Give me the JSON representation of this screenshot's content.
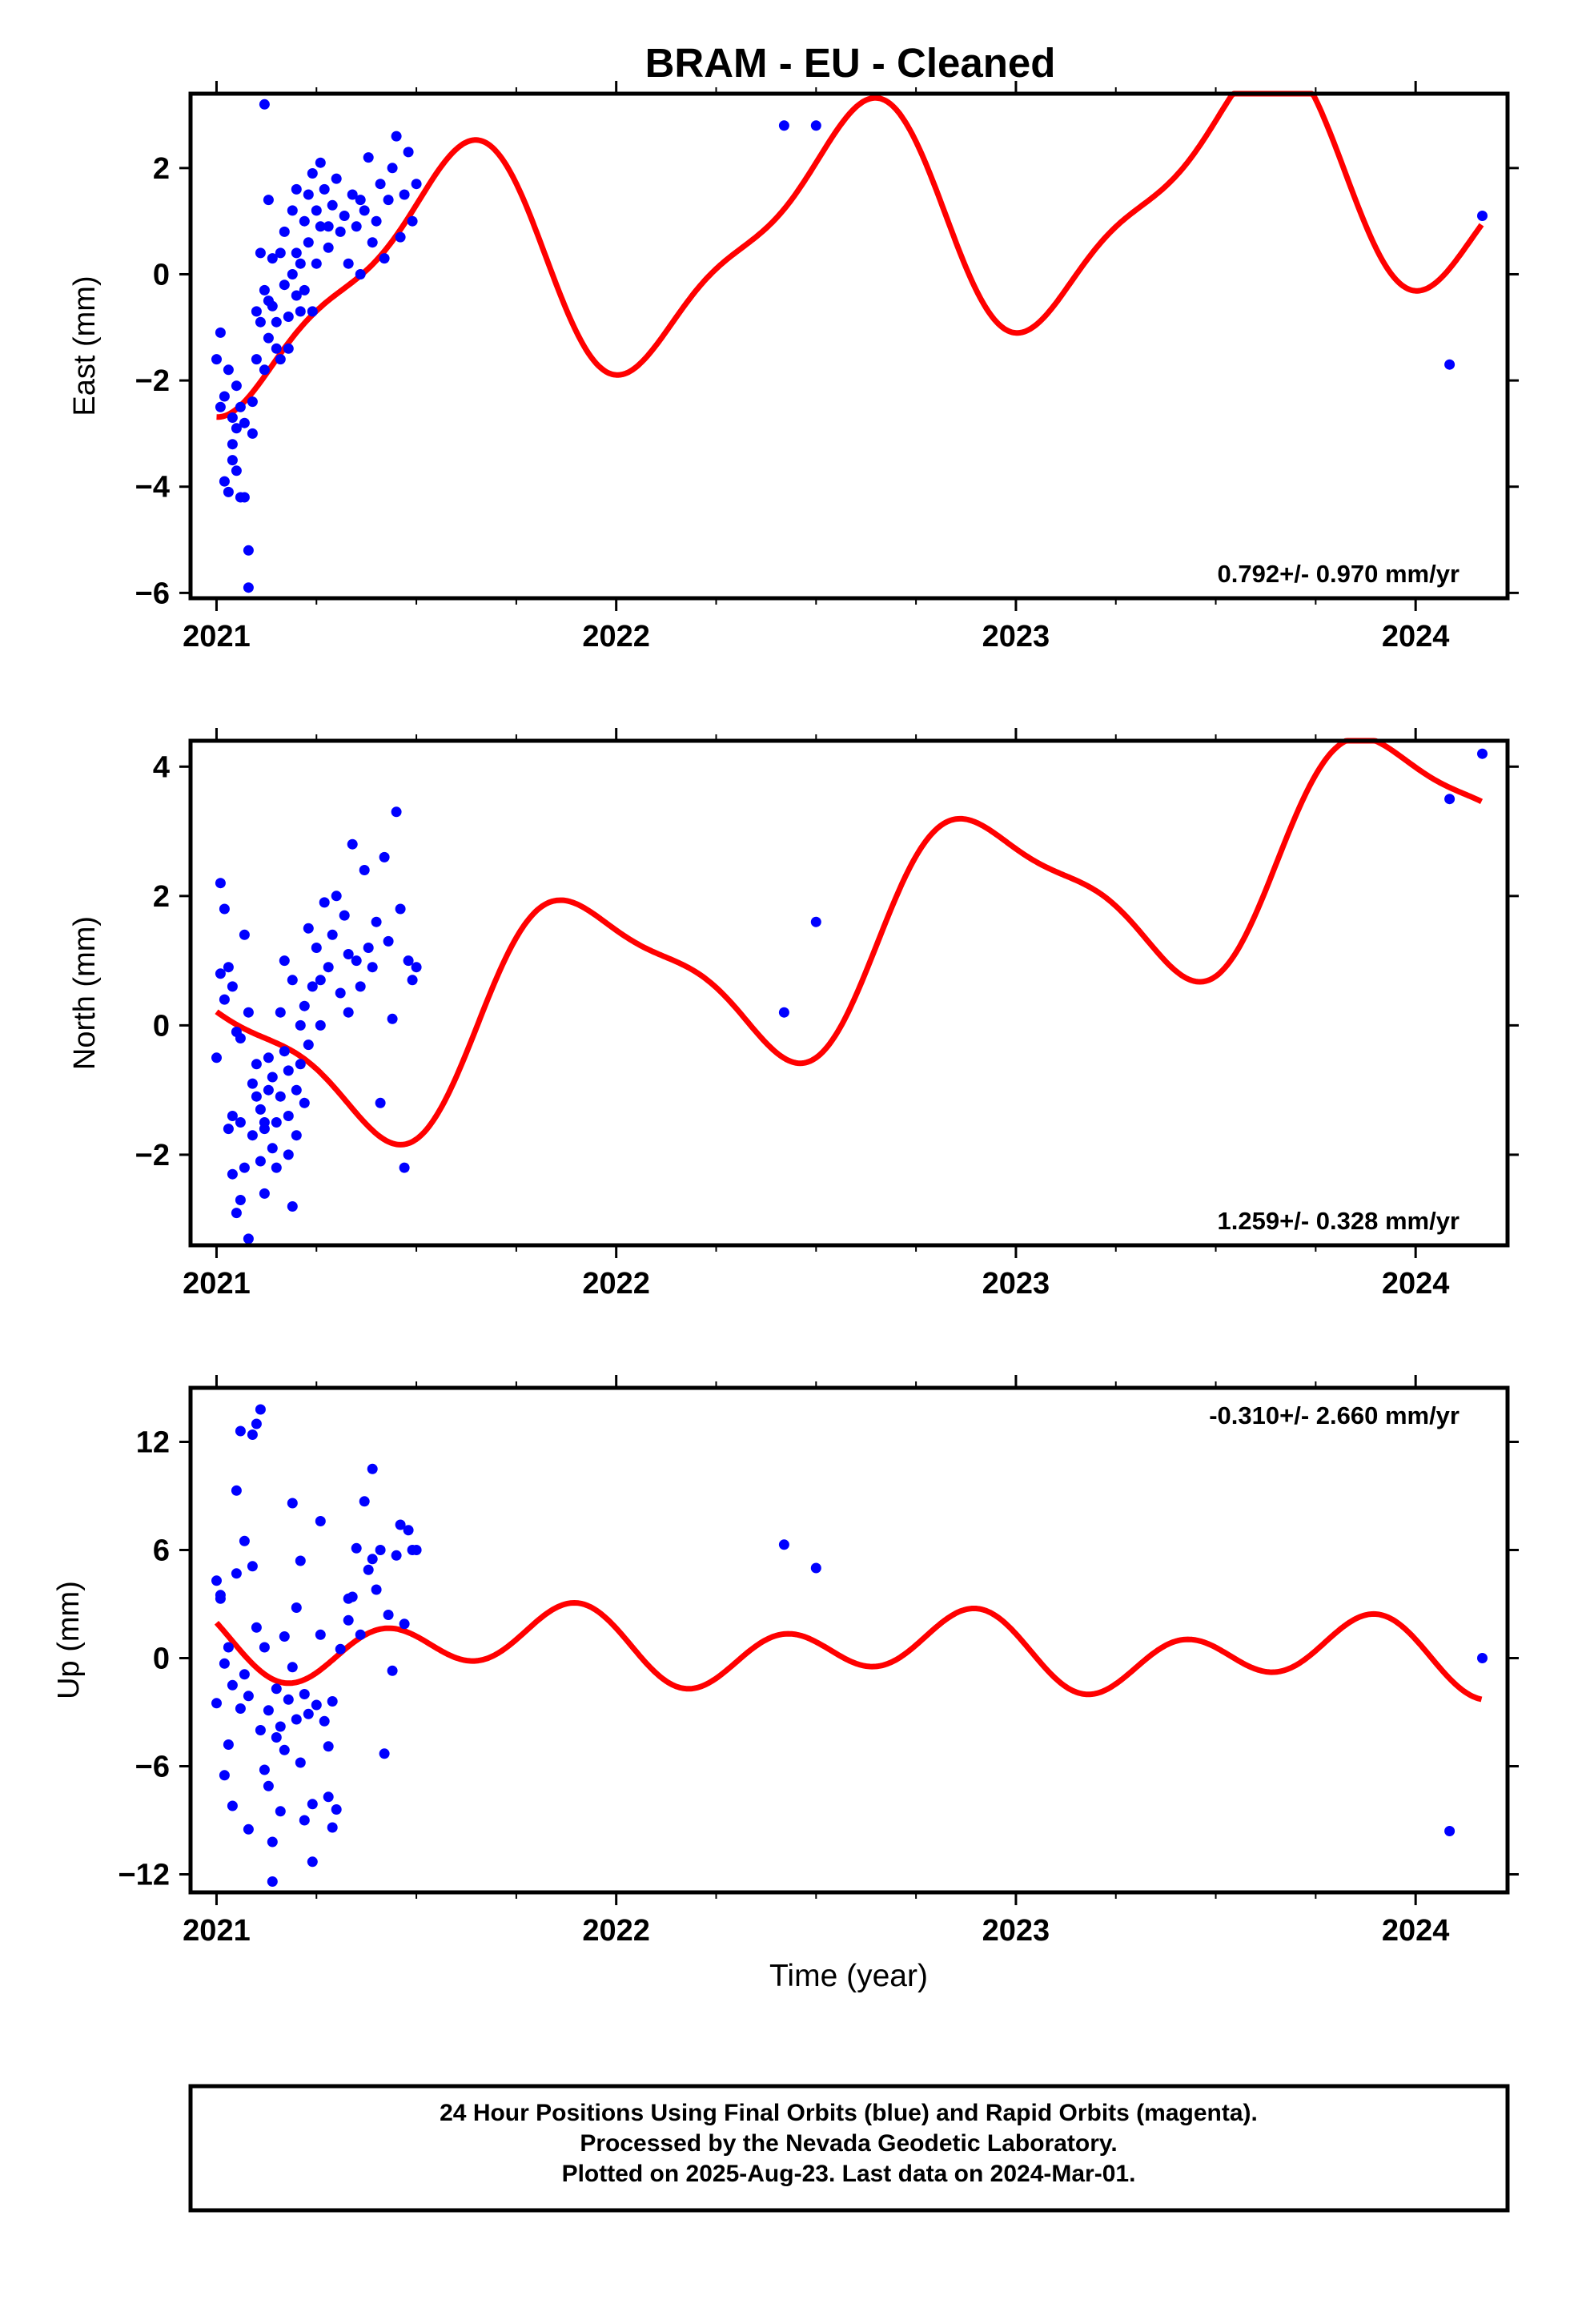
{
  "title": "BRAM  - EU - Cleaned",
  "xlabel": "Time (year)",
  "colors": {
    "final_orbits": "#0000ff",
    "model": "#ff0000",
    "frame": "#000000"
  },
  "footer": {
    "line1": "24 Hour Positions Using Final Orbits (blue) and Rapid Orbits (magenta).",
    "line2": "Processed by the Nevada Geodetic Laboratory.",
    "line3": "Plotted on 2025-Aug-23. Last data on 2024-Mar-01."
  },
  "chart_data": [
    {
      "type": "scatter",
      "panel": "east",
      "ylabel": "East (mm)",
      "rate": "0.792+/- 0.970 mm/yr",
      "xlim": [
        2020.935,
        2024.23
      ],
      "ylim": [
        -6.1,
        3.4
      ],
      "xticks": [
        2021,
        2022,
        2023,
        2024
      ],
      "yticks": [
        -6,
        -4,
        -2,
        0,
        2
      ],
      "model": {
        "offset": 0.8,
        "trend": 0.792,
        "ann_cos": -1.8,
        "ann_sin": -1.0,
        "semi_cos": -0.5,
        "semi_sin": 0.4,
        "xrange": [
          2021.0,
          2024.167
        ]
      },
      "points": [
        [
          2021.0,
          -1.6
        ],
        [
          2021.01,
          -1.1
        ],
        [
          2021.01,
          -2.5
        ],
        [
          2021.02,
          -3.9
        ],
        [
          2021.02,
          -2.3
        ],
        [
          2021.03,
          -1.8
        ],
        [
          2021.03,
          -4.1
        ],
        [
          2021.04,
          -2.7
        ],
        [
          2021.04,
          -3.5
        ],
        [
          2021.05,
          -2.9
        ],
        [
          2021.05,
          -3.7
        ],
        [
          2021.06,
          -4.2
        ],
        [
          2021.06,
          -2.5
        ],
        [
          2021.07,
          -2.8
        ],
        [
          2021.07,
          -4.2
        ],
        [
          2021.08,
          -5.2
        ],
        [
          2021.08,
          -5.9
        ],
        [
          2021.09,
          -3.0
        ],
        [
          2021.09,
          -2.4
        ],
        [
          2021.1,
          -1.6
        ],
        [
          2021.1,
          -0.7
        ],
        [
          2021.11,
          0.4
        ],
        [
          2021.11,
          -0.9
        ],
        [
          2021.12,
          -1.8
        ],
        [
          2021.12,
          -0.3
        ],
        [
          2021.13,
          1.4
        ],
        [
          2021.13,
          -1.2
        ],
        [
          2021.14,
          0.3
        ],
        [
          2021.14,
          -0.6
        ],
        [
          2021.15,
          -1.4
        ],
        [
          2021.15,
          -0.9
        ],
        [
          2021.16,
          0.4
        ],
        [
          2021.16,
          -1.6
        ],
        [
          2021.17,
          -0.2
        ],
        [
          2021.17,
          0.8
        ],
        [
          2021.18,
          -1.4
        ],
        [
          2021.18,
          -0.8
        ],
        [
          2021.19,
          0.0
        ],
        [
          2021.19,
          1.2
        ],
        [
          2021.2,
          -0.4
        ],
        [
          2021.2,
          1.6
        ],
        [
          2021.21,
          -0.7
        ],
        [
          2021.21,
          0.2
        ],
        [
          2021.22,
          1.0
        ],
        [
          2021.22,
          -0.3
        ],
        [
          2021.23,
          1.5
        ],
        [
          2021.23,
          0.6
        ],
        [
          2021.24,
          1.9
        ],
        [
          2021.24,
          -0.7
        ],
        [
          2021.25,
          1.2
        ],
        [
          2021.25,
          0.2
        ],
        [
          2021.26,
          2.1
        ],
        [
          2021.26,
          0.9
        ],
        [
          2021.27,
          1.6
        ],
        [
          2021.28,
          0.5
        ],
        [
          2021.29,
          1.3
        ],
        [
          2021.3,
          1.8
        ],
        [
          2021.31,
          0.8
        ],
        [
          2021.32,
          1.1
        ],
        [
          2021.33,
          0.2
        ],
        [
          2021.34,
          1.5
        ],
        [
          2021.35,
          0.9
        ],
        [
          2021.36,
          0.0
        ],
        [
          2021.37,
          1.2
        ],
        [
          2021.38,
          2.2
        ],
        [
          2021.39,
          0.6
        ],
        [
          2021.4,
          1.0
        ],
        [
          2021.41,
          1.7
        ],
        [
          2021.42,
          0.3
        ],
        [
          2021.43,
          1.4
        ],
        [
          2021.44,
          2.0
        ],
        [
          2021.45,
          2.6
        ],
        [
          2021.46,
          0.7
        ],
        [
          2021.47,
          1.5
        ],
        [
          2021.48,
          2.3
        ],
        [
          2021.49,
          1.0
        ],
        [
          2021.5,
          1.7
        ],
        [
          2021.12,
          3.2
        ],
        [
          2021.04,
          -3.2
        ],
        [
          2021.05,
          -2.1
        ],
        [
          2021.13,
          -0.5
        ],
        [
          2021.2,
          0.4
        ],
        [
          2021.28,
          0.9
        ],
        [
          2021.36,
          1.4
        ],
        [
          2022.42,
          2.8
        ],
        [
          2022.5,
          2.8
        ],
        [
          2024.085,
          -1.7
        ],
        [
          2024.167,
          1.1
        ]
      ]
    },
    {
      "type": "scatter",
      "panel": "north",
      "ylabel": "North (mm)",
      "rate": "1.259+/- 0.328 mm/yr",
      "xlim": [
        2020.935,
        2024.23
      ],
      "ylim": [
        -3.4,
        4.4
      ],
      "xticks": [
        2021,
        2022,
        2023,
        2024
      ],
      "yticks": [
        -2,
        0,
        2,
        4
      ],
      "model": {
        "offset": 1.2,
        "trend": 1.259,
        "ann_cos": 1.3,
        "ann_sin": -0.7,
        "semi_cos": -0.4,
        "semi_sin": -0.1,
        "xrange": [
          2021.0,
          2024.167
        ]
      },
      "points": [
        [
          2021.0,
          -0.5
        ],
        [
          2021.01,
          2.2
        ],
        [
          2021.01,
          0.8
        ],
        [
          2021.02,
          0.4
        ],
        [
          2021.02,
          1.8
        ],
        [
          2021.03,
          0.9
        ],
        [
          2021.03,
          -1.6
        ],
        [
          2021.04,
          0.6
        ],
        [
          2021.04,
          -1.4
        ],
        [
          2021.05,
          -0.1
        ],
        [
          2021.05,
          -2.9
        ],
        [
          2021.06,
          -2.7
        ],
        [
          2021.06,
          -1.5
        ],
        [
          2021.07,
          1.4
        ],
        [
          2021.07,
          -2.2
        ],
        [
          2021.08,
          0.2
        ],
        [
          2021.08,
          -3.3
        ],
        [
          2021.09,
          -0.9
        ],
        [
          2021.09,
          -1.7
        ],
        [
          2021.1,
          -1.1
        ],
        [
          2021.1,
          -0.6
        ],
        [
          2021.11,
          -2.1
        ],
        [
          2021.11,
          -1.3
        ],
        [
          2021.12,
          -1.6
        ],
        [
          2021.12,
          -2.6
        ],
        [
          2021.13,
          -0.5
        ],
        [
          2021.13,
          -1.0
        ],
        [
          2021.14,
          -1.9
        ],
        [
          2021.14,
          -0.8
        ],
        [
          2021.15,
          -1.5
        ],
        [
          2021.15,
          -2.2
        ],
        [
          2021.16,
          0.2
        ],
        [
          2021.16,
          -1.1
        ],
        [
          2021.17,
          1.0
        ],
        [
          2021.17,
          -0.4
        ],
        [
          2021.18,
          -1.4
        ],
        [
          2021.18,
          -0.7
        ],
        [
          2021.19,
          -2.8
        ],
        [
          2021.19,
          0.7
        ],
        [
          2021.2,
          -1.0
        ],
        [
          2021.2,
          -1.7
        ],
        [
          2021.21,
          0.0
        ],
        [
          2021.21,
          -0.6
        ],
        [
          2021.22,
          -1.2
        ],
        [
          2021.22,
          0.3
        ],
        [
          2021.23,
          1.5
        ],
        [
          2021.23,
          -0.3
        ],
        [
          2021.24,
          0.6
        ],
        [
          2021.25,
          1.2
        ],
        [
          2021.26,
          0.0
        ],
        [
          2021.27,
          1.9
        ],
        [
          2021.28,
          0.9
        ],
        [
          2021.29,
          1.4
        ],
        [
          2021.3,
          2.0
        ],
        [
          2021.31,
          0.5
        ],
        [
          2021.32,
          1.7
        ],
        [
          2021.33,
          0.2
        ],
        [
          2021.34,
          2.8
        ],
        [
          2021.35,
          1.0
        ],
        [
          2021.36,
          0.6
        ],
        [
          2021.37,
          2.4
        ],
        [
          2021.38,
          1.2
        ],
        [
          2021.39,
          0.9
        ],
        [
          2021.4,
          1.6
        ],
        [
          2021.41,
          -1.2
        ],
        [
          2021.42,
          2.6
        ],
        [
          2021.43,
          1.3
        ],
        [
          2021.44,
          0.1
        ],
        [
          2021.45,
          3.3
        ],
        [
          2021.46,
          1.8
        ],
        [
          2021.47,
          -2.2
        ],
        [
          2021.48,
          1.0
        ],
        [
          2021.49,
          0.7
        ],
        [
          2021.5,
          0.9
        ],
        [
          2021.04,
          -2.3
        ],
        [
          2021.06,
          -0.2
        ],
        [
          2021.12,
          -1.5
        ],
        [
          2021.18,
          -2.0
        ],
        [
          2021.26,
          0.7
        ],
        [
          2021.33,
          1.1
        ],
        [
          2022.42,
          0.2
        ],
        [
          2022.5,
          1.6
        ],
        [
          2024.085,
          3.5
        ],
        [
          2024.167,
          4.2
        ]
      ]
    },
    {
      "type": "scatter",
      "panel": "up",
      "ylabel": "Up (mm)",
      "rate": "-0.310+/- 2.660 mm/yr",
      "xlim": [
        2020.935,
        2024.23
      ],
      "ylim": [
        -13.0,
        15.0
      ],
      "xticks": [
        2021,
        2022,
        2023,
        2024
      ],
      "yticks": [
        -12,
        -6,
        0,
        6,
        12
      ],
      "model": {
        "offset": 0.5,
        "trend": -0.31,
        "ann_cos": 0.3,
        "ann_sin": -1.0,
        "semi_cos": 0.7,
        "semi_sin": -1.4,
        "xrange": [
          2021.0,
          2024.167
        ]
      },
      "points": [
        [
          2021.0,
          4.3
        ],
        [
          2021.0,
          -2.5
        ],
        [
          2021.01,
          3.5
        ],
        [
          2021.01,
          3.3
        ],
        [
          2021.02,
          -6.5
        ],
        [
          2021.02,
          -0.3
        ],
        [
          2021.03,
          -4.8
        ],
        [
          2021.03,
          0.6
        ],
        [
          2021.04,
          -1.5
        ],
        [
          2021.04,
          -8.2
        ],
        [
          2021.05,
          4.7
        ],
        [
          2021.05,
          9.3
        ],
        [
          2021.06,
          12.6
        ],
        [
          2021.06,
          -2.8
        ],
        [
          2021.07,
          6.5
        ],
        [
          2021.07,
          -0.9
        ],
        [
          2021.08,
          -9.5
        ],
        [
          2021.08,
          -2.1
        ],
        [
          2021.09,
          5.1
        ],
        [
          2021.09,
          12.4
        ],
        [
          2021.1,
          1.7
        ],
        [
          2021.1,
          13.0
        ],
        [
          2021.11,
          -4.0
        ],
        [
          2021.11,
          13.8
        ],
        [
          2021.12,
          -6.2
        ],
        [
          2021.12,
          0.6
        ],
        [
          2021.13,
          -2.9
        ],
        [
          2021.13,
          -7.1
        ],
        [
          2021.14,
          -10.2
        ],
        [
          2021.14,
          -12.4
        ],
        [
          2021.15,
          -4.4
        ],
        [
          2021.15,
          -1.7
        ],
        [
          2021.16,
          -8.5
        ],
        [
          2021.16,
          -3.8
        ],
        [
          2021.17,
          1.2
        ],
        [
          2021.17,
          -5.1
        ],
        [
          2021.18,
          -2.3
        ],
        [
          2021.19,
          8.6
        ],
        [
          2021.19,
          -0.5
        ],
        [
          2021.2,
          -3.4
        ],
        [
          2021.2,
          2.8
        ],
        [
          2021.21,
          -5.8
        ],
        [
          2021.21,
          5.4
        ],
        [
          2021.22,
          -2.0
        ],
        [
          2021.22,
          -9.0
        ],
        [
          2021.23,
          -3.1
        ],
        [
          2021.24,
          -8.1
        ],
        [
          2021.24,
          -11.3
        ],
        [
          2021.25,
          -2.6
        ],
        [
          2021.26,
          1.3
        ],
        [
          2021.27,
          -3.5
        ],
        [
          2021.28,
          -7.7
        ],
        [
          2021.28,
          -4.9
        ],
        [
          2021.29,
          -9.4
        ],
        [
          2021.29,
          -2.4
        ],
        [
          2021.3,
          -8.4
        ],
        [
          2021.31,
          0.5
        ],
        [
          2021.33,
          2.1
        ],
        [
          2021.34,
          3.4
        ],
        [
          2021.35,
          6.1
        ],
        [
          2021.36,
          1.3
        ],
        [
          2021.37,
          8.7
        ],
        [
          2021.38,
          4.9
        ],
        [
          2021.39,
          10.5
        ],
        [
          2021.4,
          3.8
        ],
        [
          2021.41,
          6.0
        ],
        [
          2021.42,
          -5.3
        ],
        [
          2021.43,
          2.4
        ],
        [
          2021.44,
          -0.7
        ],
        [
          2021.45,
          5.7
        ],
        [
          2021.46,
          7.4
        ],
        [
          2021.47,
          1.9
        ],
        [
          2021.48,
          7.1
        ],
        [
          2021.49,
          6.0
        ],
        [
          2021.5,
          6.0
        ],
        [
          2021.26,
          7.6
        ],
        [
          2021.33,
          3.3
        ],
        [
          2021.39,
          5.5
        ],
        [
          2022.42,
          6.3
        ],
        [
          2022.5,
          5.0
        ],
        [
          2024.085,
          -9.6
        ],
        [
          2024.167,
          0.0
        ]
      ]
    }
  ]
}
